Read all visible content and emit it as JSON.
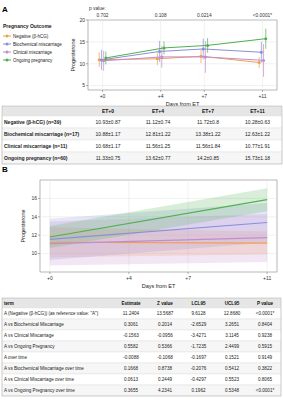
{
  "chart_data": [
    {
      "type": "line",
      "panel_label": "A",
      "legend_title": "Pregnancy Outcome",
      "annotation_label": "p value:",
      "x_label": "Days from ET",
      "y_label": "Progesterone",
      "x": [
        0,
        4,
        7,
        11
      ],
      "xlim": [
        -1,
        12
      ],
      "xticks": [
        {
          "value": 0,
          "label": "+0"
        },
        {
          "value": 4,
          "label": "+4"
        },
        {
          "value": 7,
          "label": "+7"
        },
        {
          "value": 11,
          "label": "+11"
        }
      ],
      "ylim": [
        4,
        20
      ],
      "yticks": [
        5,
        10,
        15,
        20
      ],
      "grid": true,
      "legend": "left",
      "marker": "circle",
      "p_values": [
        "0.702",
        "0.108",
        "0.0214",
        "<0.0001*"
      ],
      "series": [
        {
          "name": "Negative (β-hCG)",
          "color": "#f0a050",
          "values": [
            10.93,
            11.12,
            11.72,
            10.28
          ],
          "errors": [
            1.71,
            1.45,
            1.57,
            1.23
          ]
        },
        {
          "name": "Biochemical miscarriage",
          "color": "#8a8fd6",
          "values": [
            10.88,
            12.81,
            13.38,
            12.63
          ],
          "errors": [
            2.29,
            2.39,
            2.39,
            2.39
          ]
        },
        {
          "name": "Clinical miscarriage",
          "color": "#c38bd0",
          "values": [
            10.68,
            11.56,
            11.56,
            10.77
          ],
          "errors": [
            2.29,
            2.45,
            3.61,
            3.74
          ]
        },
        {
          "name": "Ongoing pregnancy",
          "color": "#4fb04f",
          "values": [
            11.33,
            13.62,
            14.2,
            15.73
          ],
          "errors": [
            1.47,
            1.51,
            1.67,
            2.31
          ]
        }
      ]
    },
    {
      "type": "line",
      "panel_label": "B",
      "x_label": "Days from ET",
      "y_label": "Progesterone",
      "x": [
        0,
        11
      ],
      "xlim": [
        -0.5,
        11.5
      ],
      "xticks": [
        {
          "value": 0,
          "label": "+0"
        },
        {
          "value": 4,
          "label": "+4"
        },
        {
          "value": 7,
          "label": "+7"
        },
        {
          "value": 11,
          "label": "+11"
        }
      ],
      "ylim": [
        8,
        18
      ],
      "yticks": [
        10,
        12,
        14,
        16
      ],
      "grid": true,
      "series": [
        {
          "color": "#f0a050",
          "values": [
            11.24,
            11.14
          ],
          "ci_lower": [
            9.61,
            9.9
          ],
          "ci_upper": [
            12.87,
            12.4
          ]
        },
        {
          "color": "#8a8fd6",
          "values": [
            11.55,
            13.38
          ],
          "ci_lower": [
            9.3,
            11.2
          ],
          "ci_upper": [
            13.8,
            15.5
          ]
        },
        {
          "color": "#c38bd0",
          "values": [
            11.08,
            11.74
          ],
          "ci_lower": [
            8.7,
            9.1
          ],
          "ci_upper": [
            13.5,
            14.3
          ]
        },
        {
          "color": "#4fb04f",
          "values": [
            11.8,
            15.87
          ],
          "ci_lower": [
            10.6,
            14.6
          ],
          "ci_upper": [
            13.0,
            17.1
          ]
        }
      ]
    }
  ],
  "tables": [
    {
      "header": [
        "",
        "ET+0",
        "ET+4",
        "ET+7",
        "ET+11"
      ],
      "rows": [
        [
          "Negative (β-hCG) (n=39)",
          "10.93±0.87",
          "11.12±0.74",
          "11.72±0.8",
          "10.28±0.63"
        ],
        [
          "Biochemical miscarriage (n=17)",
          "10.88±1.17",
          "12.81±1.22",
          "13.38±1.22",
          "12.63±1.22"
        ],
        [
          "Clinical miscarriage (n=11)",
          "10.68±1.17",
          "11.56±1.25",
          "11.56±1.84",
          "10.77±1.91"
        ],
        [
          "Ongoing pregnancy (n=60)",
          "11.33±0.75",
          "13.62±0.77",
          "14.2±0.85",
          "15.73±1.18"
        ]
      ]
    },
    {
      "header": [
        "term",
        "Estimate",
        "Z value",
        "LCL95",
        "UCL95",
        "P value"
      ],
      "rows": [
        [
          "A (Negative (β-hCG)) (as reference value: \"A\")",
          "11.2404",
          "13.5687",
          "9.6128",
          "12.8680",
          "<0.0001*"
        ],
        [
          "A vs Biochemical Miscarriage",
          "0.3061",
          "0.2014",
          "-2.6529",
          "3.2651",
          "0.8404"
        ],
        [
          "A vs Clinical Miscarriage",
          "-0.1563",
          "-0.0956",
          "-3.4271",
          "3.1145",
          "0.9238"
        ],
        [
          "A vs Ongoing Pregnancy",
          "0.5582",
          "0.5366",
          "-1.7235",
          "2.4499",
          "0.5915"
        ],
        [
          "A over time",
          "-0.0088",
          "-0.1068",
          "-0.1697",
          "0.1521",
          "0.9149"
        ],
        [
          "A vs Biochemical Miscarriage over time",
          "0.1668",
          "0.8738",
          "-0.2076",
          "0.5412",
          "0.3822"
        ],
        [
          "A vs Clinical Miscarriage over time",
          "0.0613",
          "0.2449",
          "-0.4297",
          "0.5523",
          "0.8065"
        ],
        [
          "A vs Ongoing Pregnancy over time",
          "0.3655",
          "4.2341",
          "0.1962",
          "0.5348",
          "<0.0001*"
        ]
      ]
    }
  ]
}
